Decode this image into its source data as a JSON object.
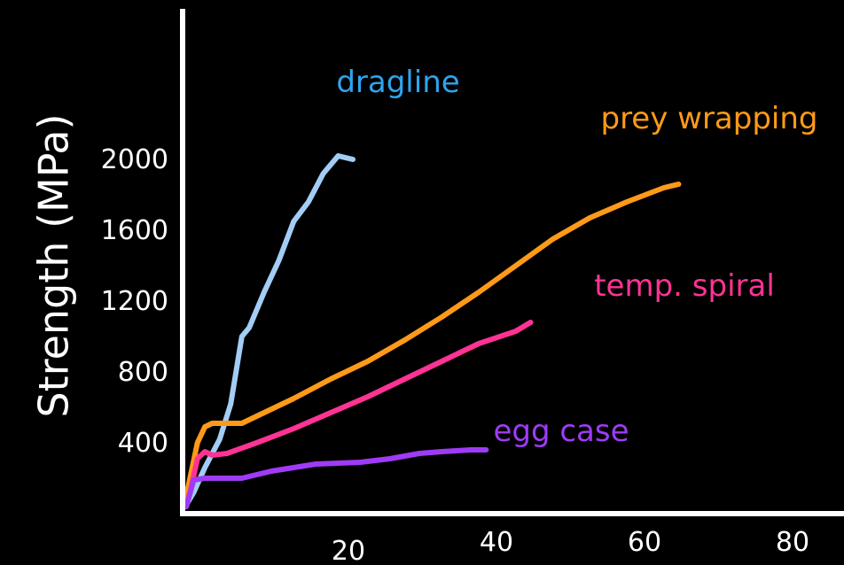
{
  "chart_data": {
    "type": "line",
    "title": "",
    "ylabel": "Strength (MPa)",
    "xlabel": "",
    "xlim": [
      0,
      80
    ],
    "ylim": [
      0,
      2300
    ],
    "x_ticks": [
      {
        "value": 20,
        "label": "20"
      },
      {
        "value": 40,
        "label": "40"
      },
      {
        "value": 60,
        "label": "60"
      },
      {
        "value": 80,
        "label": "80"
      }
    ],
    "y_ticks": [
      {
        "value": 400,
        "label": "400"
      },
      {
        "value": 800,
        "label": "800"
      },
      {
        "value": 1200,
        "label": "1200"
      },
      {
        "value": 1600,
        "label": "1600"
      },
      {
        "value": 2000,
        "label": "2000"
      }
    ],
    "grid": false,
    "legend": "none",
    "series": [
      {
        "name": "dragline",
        "color": "#a3cdf5",
        "label_color": "#2fa4ee",
        "points": [
          [
            0.5,
            50
          ],
          [
            1.5,
            120
          ],
          [
            3,
            260
          ],
          [
            5,
            420
          ],
          [
            6.5,
            620
          ],
          [
            8,
            1000
          ],
          [
            9,
            1050
          ],
          [
            11,
            1250
          ],
          [
            13,
            1430
          ],
          [
            15,
            1650
          ],
          [
            17,
            1760
          ],
          [
            19,
            1920
          ],
          [
            21,
            2020
          ],
          [
            23,
            2000
          ]
        ]
      },
      {
        "name": "prey wrapping",
        "color": "#ff9a18",
        "label_color": "#ff9a18",
        "points": [
          [
            0.3,
            60
          ],
          [
            1,
            200
          ],
          [
            2,
            400
          ],
          [
            3,
            490
          ],
          [
            4,
            510
          ],
          [
            5,
            510
          ],
          [
            8,
            510
          ],
          [
            10,
            550
          ],
          [
            15,
            650
          ],
          [
            20,
            760
          ],
          [
            25,
            860
          ],
          [
            30,
            980
          ],
          [
            35,
            1110
          ],
          [
            40,
            1250
          ],
          [
            45,
            1400
          ],
          [
            50,
            1550
          ],
          [
            55,
            1670
          ],
          [
            60,
            1760
          ],
          [
            65,
            1840
          ],
          [
            67,
            1860
          ]
        ]
      },
      {
        "name": "temp. spiral",
        "color": "#ff3394",
        "label_color": "#ff3394",
        "points": [
          [
            0.5,
            40
          ],
          [
            1,
            120
          ],
          [
            2,
            310
          ],
          [
            3,
            350
          ],
          [
            4,
            330
          ],
          [
            6,
            340
          ],
          [
            8,
            370
          ],
          [
            10,
            400
          ],
          [
            15,
            480
          ],
          [
            20,
            570
          ],
          [
            25,
            660
          ],
          [
            30,
            760
          ],
          [
            35,
            860
          ],
          [
            40,
            960
          ],
          [
            45,
            1030
          ],
          [
            47,
            1080
          ]
        ]
      },
      {
        "name": "egg case",
        "color": "#9f3bf7",
        "label_color": "#9f3bf7",
        "points": [
          [
            0.5,
            40
          ],
          [
            1.5,
            190
          ],
          [
            3,
            200
          ],
          [
            8,
            200
          ],
          [
            12,
            240
          ],
          [
            18,
            280
          ],
          [
            24,
            290
          ],
          [
            28,
            310
          ],
          [
            32,
            340
          ],
          [
            35,
            350
          ],
          [
            39,
            360
          ],
          [
            41,
            360
          ]
        ]
      }
    ]
  }
}
